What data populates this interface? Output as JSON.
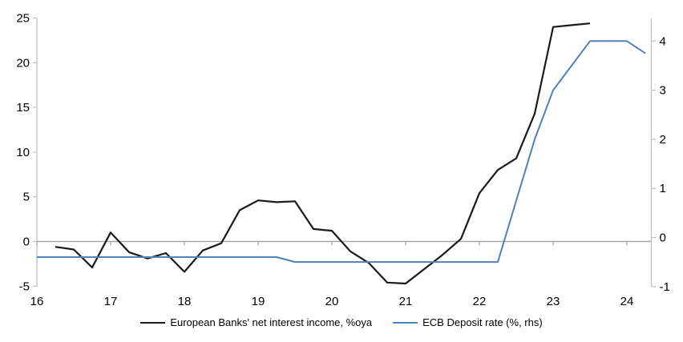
{
  "chart_data": {
    "type": "line",
    "title": "",
    "xlabel": "",
    "ylabel_left": "",
    "ylabel_right": "",
    "x_axis": {
      "ticks": [
        16,
        17,
        18,
        19,
        20,
        21,
        22,
        23,
        24
      ],
      "range": [
        16,
        24.33
      ]
    },
    "y_left": {
      "ticks": [
        25,
        20,
        15,
        10,
        5,
        0,
        -5
      ],
      "range": [
        -5,
        25
      ]
    },
    "y_right": {
      "ticks": [
        4,
        3,
        2,
        1,
        0,
        -1
      ],
      "range": [
        -1,
        4.5
      ]
    },
    "grid": "zero-line-only",
    "legend_position": "bottom-center",
    "series": [
      {
        "name": "European Banks' net interest income, %oya",
        "axis": "left",
        "color": "#1a1a1a",
        "stroke_width": 2.2,
        "x": [
          16.25,
          16.5,
          16.75,
          17.0,
          17.25,
          17.5,
          17.75,
          18.0,
          18.25,
          18.5,
          18.75,
          19.0,
          19.25,
          19.5,
          19.75,
          20.0,
          20.25,
          20.5,
          20.75,
          21.0,
          21.25,
          21.5,
          21.75,
          22.0,
          22.25,
          22.5,
          22.75,
          23.0,
          23.25,
          23.5
        ],
        "values": [
          -0.6,
          -0.9,
          -2.9,
          1.0,
          -1.2,
          -1.9,
          -1.3,
          -3.4,
          -1.0,
          -0.2,
          3.5,
          4.6,
          4.4,
          4.5,
          1.4,
          1.2,
          -1.1,
          -2.4,
          -4.6,
          -4.7,
          -3.1,
          -1.5,
          0.3,
          5.4,
          8.0,
          9.3,
          14.3,
          24.0,
          24.2,
          24.4
        ]
      },
      {
        "name": "ECB Deposit rate (%, rhs)",
        "axis": "right",
        "color": "#4f81bd",
        "stroke_width": 2,
        "x": [
          16.0,
          16.25,
          16.5,
          16.75,
          17.0,
          17.25,
          17.5,
          17.75,
          18.0,
          18.25,
          18.5,
          18.75,
          19.0,
          19.25,
          19.5,
          19.75,
          20.0,
          20.25,
          20.5,
          20.75,
          21.0,
          21.25,
          21.5,
          21.75,
          22.0,
          22.25,
          22.5,
          22.75,
          23.0,
          23.25,
          23.5,
          23.75,
          24.0,
          24.25
        ],
        "values": [
          -0.4,
          -0.4,
          -0.4,
          -0.4,
          -0.4,
          -0.4,
          -0.4,
          -0.4,
          -0.4,
          -0.4,
          -0.4,
          -0.4,
          -0.4,
          -0.4,
          -0.5,
          -0.5,
          -0.5,
          -0.5,
          -0.5,
          -0.5,
          -0.5,
          -0.5,
          -0.5,
          -0.5,
          -0.5,
          -0.5,
          0.75,
          2.0,
          3.0,
          3.5,
          4.0,
          4.0,
          4.0,
          3.75
        ]
      }
    ],
    "colors": {
      "axis_line": "#bfbfbf",
      "zero_line": "#a6a6a6",
      "tick_label": "#000000"
    }
  }
}
